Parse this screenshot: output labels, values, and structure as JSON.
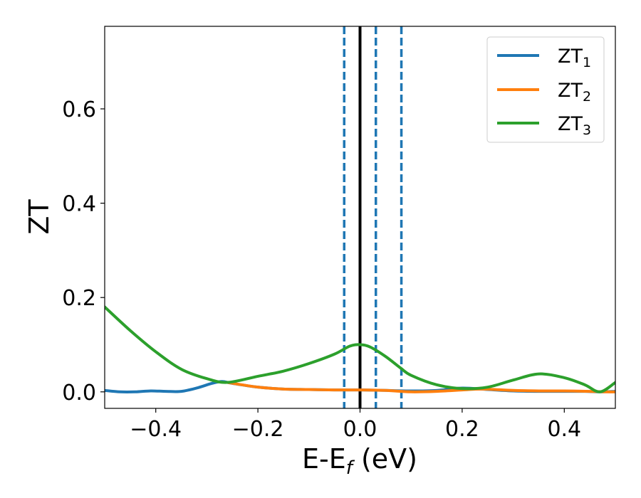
{
  "chart_data": {
    "type": "line",
    "title": "",
    "xlabel": "E-E",
    "xlabel_sub": "f",
    "xlabel_unit": " (eV)",
    "ylabel": "ZT",
    "xlim": [
      -0.5,
      0.5
    ],
    "ylim": [
      -0.035,
      0.775
    ],
    "xticks": [
      -0.4,
      -0.2,
      0.0,
      0.2,
      0.4
    ],
    "xtick_labels": [
      "−0.4",
      "−0.2",
      "0.0",
      "0.2",
      "0.4"
    ],
    "yticks": [
      0.0,
      0.2,
      0.4,
      0.6
    ],
    "ytick_labels": [
      "0.0",
      "0.2",
      "0.4",
      "0.6"
    ],
    "grid": false,
    "legend_position": "top-right",
    "vlines": [
      {
        "x": 0.0,
        "style": "solid",
        "color": "#000000"
      },
      {
        "x": -0.031,
        "style": "dashed",
        "color": "#1f77b4"
      },
      {
        "x": 0.031,
        "style": "dashed",
        "color": "#1f77b4"
      },
      {
        "x": 0.081,
        "style": "dashed",
        "color": "#1f77b4"
      }
    ],
    "series": [
      {
        "name": "ZT",
        "name_sub": "1",
        "color": "#1f77b4",
        "x": [
          -0.5,
          -0.47,
          -0.44,
          -0.41,
          -0.38,
          -0.35,
          -0.32,
          -0.29,
          -0.27,
          -0.25,
          -0.2,
          -0.15,
          -0.1,
          -0.05,
          0.0,
          0.05,
          0.1,
          0.15,
          0.2,
          0.25,
          0.3,
          0.35,
          0.4,
          0.44,
          0.47,
          0.5
        ],
        "y": [
          0.003,
          0.0,
          0.0,
          0.002,
          0.001,
          0.001,
          0.008,
          0.018,
          0.022,
          0.018,
          0.01,
          0.006,
          0.005,
          0.004,
          0.004,
          0.003,
          0.002,
          0.003,
          0.008,
          0.005,
          0.002,
          0.001,
          0.001,
          0.001,
          0.0,
          0.001
        ]
      },
      {
        "name": "ZT",
        "name_sub": "2",
        "color": "#ff7f0e",
        "x": [
          -0.26,
          -0.2,
          -0.15,
          -0.1,
          -0.05,
          0.0,
          0.05,
          0.1,
          0.15,
          0.2,
          0.24,
          0.3,
          0.35,
          0.4,
          0.45,
          0.48,
          0.5
        ],
        "y": [
          0.02,
          0.01,
          0.006,
          0.005,
          0.004,
          0.004,
          0.003,
          0.0,
          0.001,
          0.004,
          0.006,
          0.003,
          0.002,
          0.002,
          0.001,
          0.0,
          0.0
        ]
      },
      {
        "name": "ZT",
        "name_sub": "3",
        "color": "#2ca02c",
        "x": [
          -0.5,
          -0.45,
          -0.4,
          -0.35,
          -0.3,
          -0.26,
          -0.2,
          -0.15,
          -0.1,
          -0.05,
          -0.02,
          0.0,
          0.02,
          0.05,
          0.08,
          0.1,
          0.15,
          0.2,
          0.25,
          0.3,
          0.35,
          0.4,
          0.44,
          0.47,
          0.5
        ],
        "y": [
          0.18,
          0.13,
          0.085,
          0.048,
          0.028,
          0.02,
          0.033,
          0.044,
          0.06,
          0.08,
          0.097,
          0.1,
          0.095,
          0.075,
          0.05,
          0.035,
          0.015,
          0.007,
          0.01,
          0.025,
          0.038,
          0.03,
          0.015,
          0.0,
          0.02
        ]
      }
    ]
  }
}
